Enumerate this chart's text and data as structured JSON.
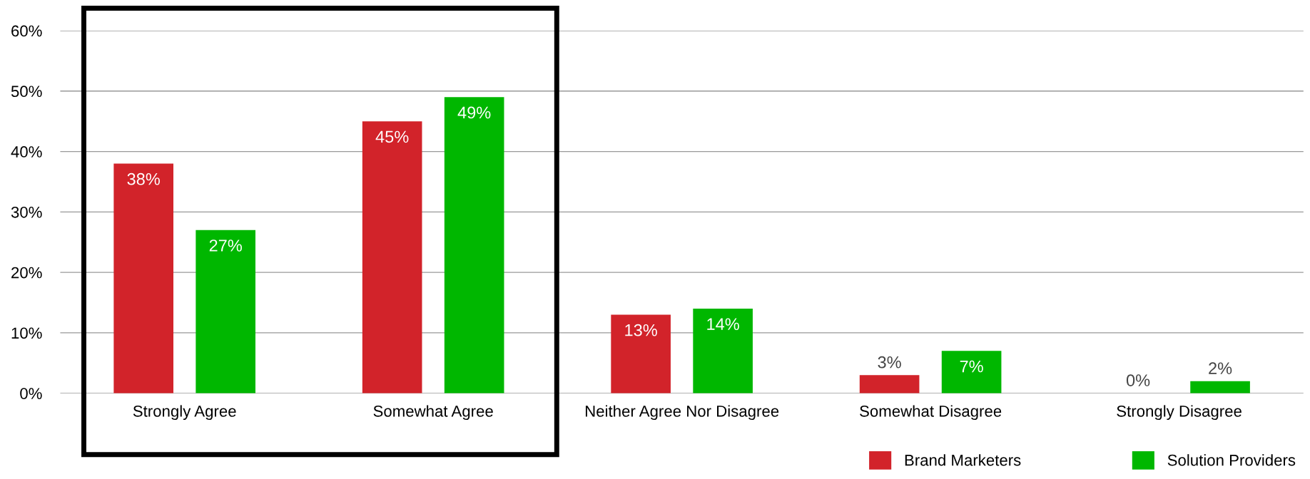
{
  "chart_data": {
    "type": "bar",
    "categories": [
      "Strongly Agree",
      "Somewhat Agree",
      "Neither Agree Nor Disagree",
      "Somewhat Disagree",
      "Strongly Disagree"
    ],
    "series": [
      {
        "name": "Brand Marketers",
        "color": "#d2232a",
        "values": [
          38,
          45,
          13,
          3,
          0
        ]
      },
      {
        "name": "Solution Providers",
        "color": "#00b700",
        "values": [
          27,
          49,
          14,
          7,
          2
        ]
      }
    ],
    "ylim": [
      0,
      60
    ],
    "yticks": [
      {
        "value": 0,
        "label": "0%"
      },
      {
        "value": 10,
        "label": "10%"
      },
      {
        "value": 20,
        "label": "20%"
      },
      {
        "value": 30,
        "label": "30%"
      },
      {
        "value": 40,
        "label": "40%"
      },
      {
        "value": 50,
        "label": "50%"
      },
      {
        "value": 60,
        "label": "60%"
      }
    ],
    "value_labels": [
      [
        "38%",
        "45%",
        "13%",
        "3%",
        "0%"
      ],
      [
        "27%",
        "49%",
        "14%",
        "7%",
        "2%"
      ]
    ],
    "grid": "y",
    "legend": "bottom right"
  }
}
